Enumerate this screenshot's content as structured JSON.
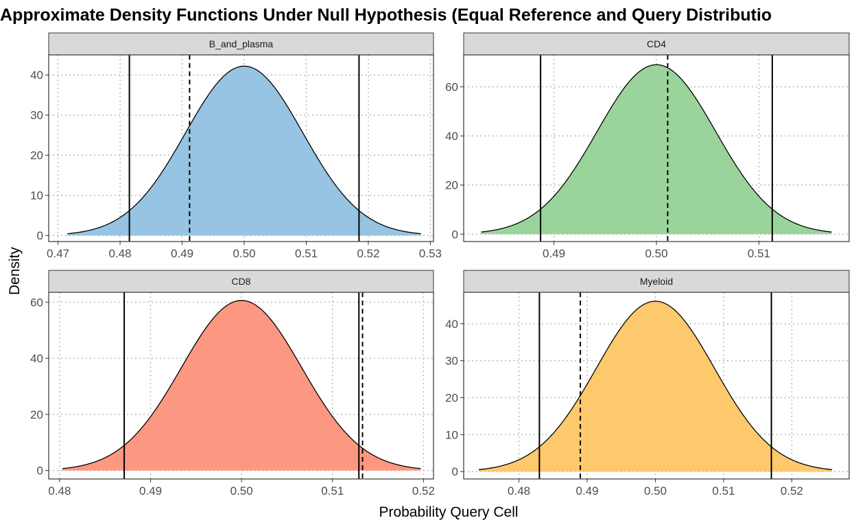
{
  "chart_data": {
    "type": "area",
    "title": "Approximate Density Functions Under Null Hypothesis (Equal Reference and Query Distributio",
    "xlabel": "Probability Query Cell",
    "ylabel": "Density",
    "grid": true,
    "panels": [
      {
        "name": "B_and_plasma",
        "fill": "#96c4e2",
        "mean": 0.5,
        "sd": 0.00945,
        "peak": 42.2,
        "xlim": [
          0.4685,
          0.5305
        ],
        "ylim": [
          -1.5,
          45
        ],
        "x_range": [
          0.4715,
          0.5285
        ],
        "xticks": [
          "0.47",
          "0.48",
          "0.49",
          "0.50",
          "0.51",
          "0.52",
          "0.53"
        ],
        "yticks": [
          "0",
          "10",
          "20",
          "30",
          "40"
        ],
        "solid_lines": [
          0.4815,
          0.5185
        ],
        "dashed_line": 0.4912
      },
      {
        "name": "CD4",
        "fill": "#9ad49b",
        "mean": 0.5,
        "sd": 0.00578,
        "peak": 69,
        "xlim": [
          0.4812,
          0.5188
        ],
        "ylim": [
          -3,
          73
        ],
        "x_range": [
          0.4829,
          0.5171
        ],
        "xticks": [
          "0.49",
          "0.50",
          "0.51"
        ],
        "yticks": [
          "0",
          "20",
          "40",
          "60"
        ],
        "solid_lines": [
          0.4887,
          0.5113
        ],
        "dashed_line": 0.5011
      },
      {
        "name": "CD8",
        "fill": "#fc9781",
        "mean": 0.5,
        "sd": 0.0066,
        "peak": 60.6,
        "xlim": [
          0.4788,
          0.5211
        ],
        "ylim": [
          -3,
          63.5
        ],
        "x_range": [
          0.4803,
          0.5197
        ],
        "xticks": [
          "0.48",
          "0.49",
          "0.50",
          "0.51",
          "0.52"
        ],
        "yticks": [
          "0",
          "20",
          "40",
          "60"
        ],
        "solid_lines": [
          0.4871,
          0.5129
        ],
        "dashed_line": 0.5133
      },
      {
        "name": "Myeloid",
        "fill": "#fdc96c",
        "mean": 0.5,
        "sd": 0.00866,
        "peak": 46.1,
        "xlim": [
          0.4719,
          0.5284
        ],
        "ylim": [
          -2,
          48.5
        ],
        "x_range": [
          0.4741,
          0.5259
        ],
        "xticks": [
          "0.48",
          "0.49",
          "0.50",
          "0.51",
          "0.52"
        ],
        "yticks": [
          "0",
          "10",
          "20",
          "30",
          "40"
        ],
        "solid_lines": [
          0.483,
          0.517
        ],
        "dashed_line": 0.489
      }
    ]
  }
}
